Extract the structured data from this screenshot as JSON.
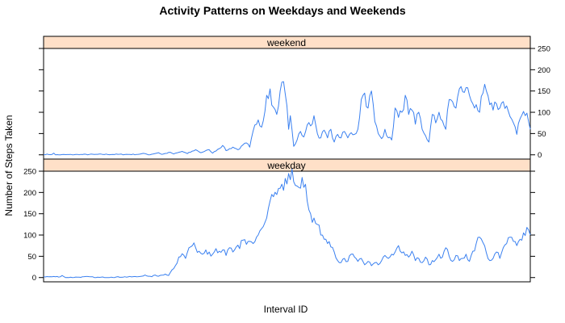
{
  "chart_data": {
    "type": "line",
    "title": "Activity Patterns on Weekdays and Weekends",
    "xlabel": "Interval ID",
    "ylabel": "Number of Steps Taken",
    "layout": "two stacked panels, shared x axis, alternating y axis sides",
    "x_range": [
      0,
      288
    ],
    "x_ticks_shown": false,
    "ylim": [
      -10,
      250
    ],
    "y_ticks": [
      0,
      50,
      100,
      150,
      200,
      250
    ],
    "grid": false,
    "legend": "none",
    "strip_color": "#ffe0c8",
    "line_color": "#3a80f0",
    "panels": [
      {
        "name": "weekend",
        "strip_label": "weekend",
        "y_axis_side": "right",
        "keypoints": [
          [
            0,
            1
          ],
          [
            5,
            1
          ],
          [
            6,
            4
          ],
          [
            7,
            0
          ],
          [
            30,
            1
          ],
          [
            55,
            1
          ],
          [
            60,
            3
          ],
          [
            62,
            0
          ],
          [
            68,
            5
          ],
          [
            70,
            1
          ],
          [
            75,
            6
          ],
          [
            77,
            2
          ],
          [
            82,
            8
          ],
          [
            85,
            3
          ],
          [
            90,
            12
          ],
          [
            93,
            5
          ],
          [
            98,
            12
          ],
          [
            100,
            4
          ],
          [
            106,
            22
          ],
          [
            108,
            10
          ],
          [
            112,
            18
          ],
          [
            115,
            12
          ],
          [
            120,
            28
          ],
          [
            122,
            18
          ],
          [
            125,
            70
          ],
          [
            127,
            82
          ],
          [
            128,
            68
          ],
          [
            130,
            80
          ],
          [
            132,
            140
          ],
          [
            134,
            155
          ],
          [
            136,
            112
          ],
          [
            138,
            95
          ],
          [
            140,
            150
          ],
          [
            142,
            172
          ],
          [
            144,
            115
          ],
          [
            145,
            60
          ],
          [
            146,
            92
          ],
          [
            148,
            20
          ],
          [
            150,
            35
          ],
          [
            152,
            55
          ],
          [
            154,
            42
          ],
          [
            156,
            70
          ],
          [
            158,
            68
          ],
          [
            160,
            92
          ],
          [
            162,
            50
          ],
          [
            164,
            40
          ],
          [
            166,
            58
          ],
          [
            168,
            40
          ],
          [
            170,
            60
          ],
          [
            172,
            30
          ],
          [
            174,
            48
          ],
          [
            176,
            40
          ],
          [
            178,
            55
          ],
          [
            180,
            40
          ],
          [
            182,
            52
          ],
          [
            184,
            48
          ],
          [
            186,
            60
          ],
          [
            188,
            130
          ],
          [
            190,
            145
          ],
          [
            192,
            110
          ],
          [
            194,
            150
          ],
          [
            196,
            78
          ],
          [
            198,
            50
          ],
          [
            200,
            38
          ],
          [
            202,
            60
          ],
          [
            204,
            40
          ],
          [
            206,
            35
          ],
          [
            208,
            110
          ],
          [
            210,
            88
          ],
          [
            212,
            100
          ],
          [
            214,
            140
          ],
          [
            216,
            95
          ],
          [
            218,
            105
          ],
          [
            220,
            72
          ],
          [
            222,
            100
          ],
          [
            224,
            60
          ],
          [
            226,
            45
          ],
          [
            228,
            30
          ],
          [
            230,
            95
          ],
          [
            232,
            75
          ],
          [
            234,
            100
          ],
          [
            236,
            80
          ],
          [
            238,
            60
          ],
          [
            240,
            130
          ],
          [
            242,
            125
          ],
          [
            244,
            110
          ],
          [
            246,
            155
          ],
          [
            248,
            148
          ],
          [
            250,
            158
          ],
          [
            252,
            140
          ],
          [
            254,
            120
          ],
          [
            256,
            118
          ],
          [
            258,
            100
          ],
          [
            260,
            145
          ],
          [
            262,
            150
          ],
          [
            264,
            118
          ],
          [
            266,
            105
          ],
          [
            268,
            120
          ],
          [
            270,
            110
          ],
          [
            272,
            125
          ],
          [
            274,
            115
          ],
          [
            276,
            90
          ],
          [
            278,
            75
          ],
          [
            280,
            48
          ],
          [
            282,
            85
          ],
          [
            284,
            102
          ],
          [
            286,
            98
          ],
          [
            288,
            60
          ]
        ]
      },
      {
        "name": "weekday",
        "strip_label": "weekday",
        "y_axis_side": "left",
        "keypoints": [
          [
            0,
            2
          ],
          [
            10,
            2
          ],
          [
            11,
            5
          ],
          [
            13,
            0
          ],
          [
            20,
            1
          ],
          [
            28,
            2
          ],
          [
            30,
            0
          ],
          [
            40,
            1
          ],
          [
            55,
            2
          ],
          [
            58,
            3
          ],
          [
            60,
            6
          ],
          [
            62,
            3
          ],
          [
            64,
            2
          ],
          [
            66,
            6
          ],
          [
            68,
            3
          ],
          [
            72,
            8
          ],
          [
            74,
            5
          ],
          [
            76,
            18
          ],
          [
            78,
            28
          ],
          [
            80,
            48
          ],
          [
            82,
            56
          ],
          [
            84,
            45
          ],
          [
            86,
            70
          ],
          [
            88,
            75
          ],
          [
            90,
            70
          ],
          [
            92,
            62
          ],
          [
            94,
            55
          ],
          [
            96,
            65
          ],
          [
            98,
            60
          ],
          [
            100,
            55
          ],
          [
            102,
            68
          ],
          [
            104,
            62
          ],
          [
            106,
            65
          ],
          [
            108,
            52
          ],
          [
            110,
            70
          ],
          [
            112,
            60
          ],
          [
            114,
            72
          ],
          [
            116,
            68
          ],
          [
            118,
            88
          ],
          [
            120,
            78
          ],
          [
            122,
            85
          ],
          [
            124,
            80
          ],
          [
            126,
            95
          ],
          [
            128,
            110
          ],
          [
            130,
            120
          ],
          [
            132,
            140
          ],
          [
            134,
            180
          ],
          [
            136,
            190
          ],
          [
            138,
            195
          ],
          [
            140,
            210
          ],
          [
            142,
            205
          ],
          [
            144,
            220
          ],
          [
            146,
            230
          ],
          [
            148,
            225
          ],
          [
            150,
            215
          ],
          [
            152,
            210
          ],
          [
            154,
            212
          ],
          [
            156,
            180
          ],
          [
            158,
            150
          ],
          [
            160,
            140
          ],
          [
            162,
            125
          ],
          [
            164,
            100
          ],
          [
            166,
            90
          ],
          [
            168,
            80
          ],
          [
            170,
            72
          ],
          [
            172,
            60
          ],
          [
            174,
            40
          ],
          [
            176,
            35
          ],
          [
            178,
            45
          ],
          [
            180,
            38
          ],
          [
            182,
            55
          ],
          [
            184,
            48
          ],
          [
            186,
            38
          ],
          [
            188,
            45
          ],
          [
            190,
            30
          ],
          [
            192,
            38
          ],
          [
            194,
            28
          ],
          [
            196,
            35
          ],
          [
            198,
            30
          ],
          [
            200,
            40
          ],
          [
            202,
            52
          ],
          [
            204,
            45
          ],
          [
            206,
            55
          ],
          [
            208,
            60
          ],
          [
            210,
            75
          ],
          [
            212,
            58
          ],
          [
            214,
            52
          ],
          [
            216,
            48
          ],
          [
            218,
            62
          ],
          [
            220,
            40
          ],
          [
            222,
            45
          ],
          [
            224,
            35
          ],
          [
            226,
            48
          ],
          [
            228,
            30
          ],
          [
            230,
            40
          ],
          [
            232,
            42
          ],
          [
            234,
            55
          ],
          [
            236,
            48
          ],
          [
            238,
            70
          ],
          [
            240,
            50
          ],
          [
            242,
            38
          ],
          [
            244,
            52
          ],
          [
            246,
            40
          ],
          [
            248,
            45
          ],
          [
            250,
            55
          ],
          [
            252,
            38
          ],
          [
            254,
            62
          ],
          [
            256,
            80
          ],
          [
            258,
            95
          ],
          [
            260,
            82
          ],
          [
            262,
            58
          ],
          [
            264,
            40
          ],
          [
            266,
            45
          ],
          [
            268,
            60
          ],
          [
            270,
            45
          ],
          [
            272,
            70
          ],
          [
            274,
            80
          ],
          [
            276,
            95
          ],
          [
            278,
            85
          ],
          [
            280,
            75
          ],
          [
            282,
            90
          ],
          [
            284,
            105
          ],
          [
            286,
            118
          ],
          [
            288,
            100
          ]
        ]
      }
    ]
  }
}
